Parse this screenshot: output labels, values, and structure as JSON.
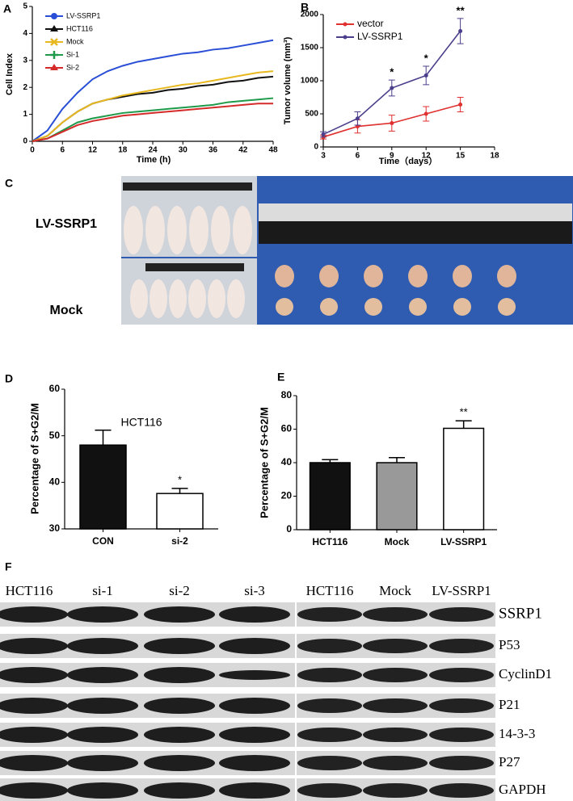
{
  "panel_labels": [
    "A",
    "B",
    "C",
    "D",
    "E",
    "F"
  ],
  "photo": {
    "labels": [
      "LV-SSRP1",
      "Mock"
    ]
  },
  "blot": {
    "columns": [
      "HCT116",
      "si-1",
      "si-2",
      "si-3",
      "HCT116",
      "Mock",
      "LV-SSRP1"
    ],
    "rows": [
      "SSRP1",
      "P53",
      "CyclinD1",
      "P21",
      "14-3-3",
      "P27",
      "GAPDH"
    ]
  },
  "chart_data": [
    {
      "type": "line",
      "xlabel": "Time (h)",
      "ylabel": "Cell Index",
      "x": [
        0,
        3,
        6,
        9,
        12,
        15,
        18,
        21,
        24,
        27,
        30,
        33,
        36,
        39,
        42,
        45,
        48
      ],
      "xlim": [
        0,
        48
      ],
      "xticks": [
        0,
        6,
        12,
        18,
        24,
        30,
        36,
        42,
        48
      ],
      "ylim": [
        0,
        5
      ],
      "yticks": [
        0,
        1,
        2,
        3,
        4,
        5
      ],
      "legend": "upper left",
      "series": [
        {
          "name": "LV-SSRP1",
          "color": "#2a4fd6",
          "values": [
            0,
            0.4,
            1.2,
            1.8,
            2.3,
            2.6,
            2.8,
            2.95,
            3.05,
            3.15,
            3.25,
            3.3,
            3.4,
            3.45,
            3.55,
            3.65,
            3.75
          ]
        },
        {
          "name": "HCT116",
          "color": "#111111",
          "values": [
            0,
            0.2,
            0.7,
            1.1,
            1.4,
            1.55,
            1.65,
            1.75,
            1.8,
            1.9,
            1.95,
            2.05,
            2.1,
            2.2,
            2.25,
            2.35,
            2.4
          ]
        },
        {
          "name": "Mock",
          "color": "#e8b820",
          "values": [
            0,
            0.2,
            0.7,
            1.1,
            1.4,
            1.55,
            1.7,
            1.8,
            1.9,
            2.0,
            2.1,
            2.15,
            2.25,
            2.35,
            2.45,
            2.55,
            2.6
          ]
        },
        {
          "name": "Si-1",
          "color": "#1f9a4a",
          "values": [
            0,
            0.1,
            0.4,
            0.7,
            0.85,
            0.95,
            1.05,
            1.1,
            1.15,
            1.2,
            1.25,
            1.3,
            1.35,
            1.45,
            1.5,
            1.55,
            1.6
          ]
        },
        {
          "name": "Si-2",
          "color": "#d42a2a",
          "values": [
            0,
            0.1,
            0.35,
            0.6,
            0.75,
            0.85,
            0.95,
            1.0,
            1.05,
            1.1,
            1.15,
            1.2,
            1.25,
            1.3,
            1.35,
            1.4,
            1.4
          ]
        }
      ]
    },
    {
      "type": "line",
      "xlabel": "Time（days）",
      "ylabel": "Tumor volume (mm³)",
      "x": [
        3,
        6,
        9,
        12,
        15
      ],
      "xlim": [
        3,
        18
      ],
      "xticks": [
        3,
        6,
        9,
        12,
        15,
        18
      ],
      "ylim": [
        0,
        2000
      ],
      "yticks": [
        0,
        500,
        1000,
        1500,
        2000
      ],
      "legend": "upper left",
      "series": [
        {
          "name": "vector",
          "color": "#e03030",
          "values": [
            150,
            310,
            360,
            500,
            640
          ],
          "errors": [
            30,
            100,
            120,
            110,
            110
          ]
        },
        {
          "name": "LV-SSRP1",
          "color": "#4b3f8c",
          "values": [
            190,
            430,
            890,
            1080,
            1750
          ],
          "errors": [
            40,
            100,
            120,
            140,
            190
          ],
          "annotations": [
            null,
            null,
            "*",
            "*",
            "**"
          ]
        }
      ]
    },
    {
      "type": "bar",
      "ylabel": "Percentage of S+G2/M",
      "annotation": "HCT116",
      "categories": [
        "CON",
        "si-2"
      ],
      "values": [
        48,
        37.6
      ],
      "errors": [
        3.2,
        1.1
      ],
      "colors": [
        "#111111",
        "#ffffff"
      ],
      "annotations": [
        null,
        "*"
      ],
      "ylim": [
        30,
        60
      ],
      "yticks": [
        30,
        40,
        50,
        60
      ]
    },
    {
      "type": "bar",
      "ylabel": "Percentage of S+G2/M",
      "categories": [
        "HCT116",
        "Mock",
        "LV-SSRP1"
      ],
      "values": [
        40,
        40,
        60.5
      ],
      "errors": [
        1.8,
        3,
        4.5
      ],
      "colors": [
        "#111111",
        "#999999",
        "#ffffff"
      ],
      "annotations": [
        null,
        null,
        "**"
      ],
      "ylim": [
        0,
        80
      ],
      "yticks": [
        0,
        20,
        40,
        60,
        80
      ]
    }
  ]
}
